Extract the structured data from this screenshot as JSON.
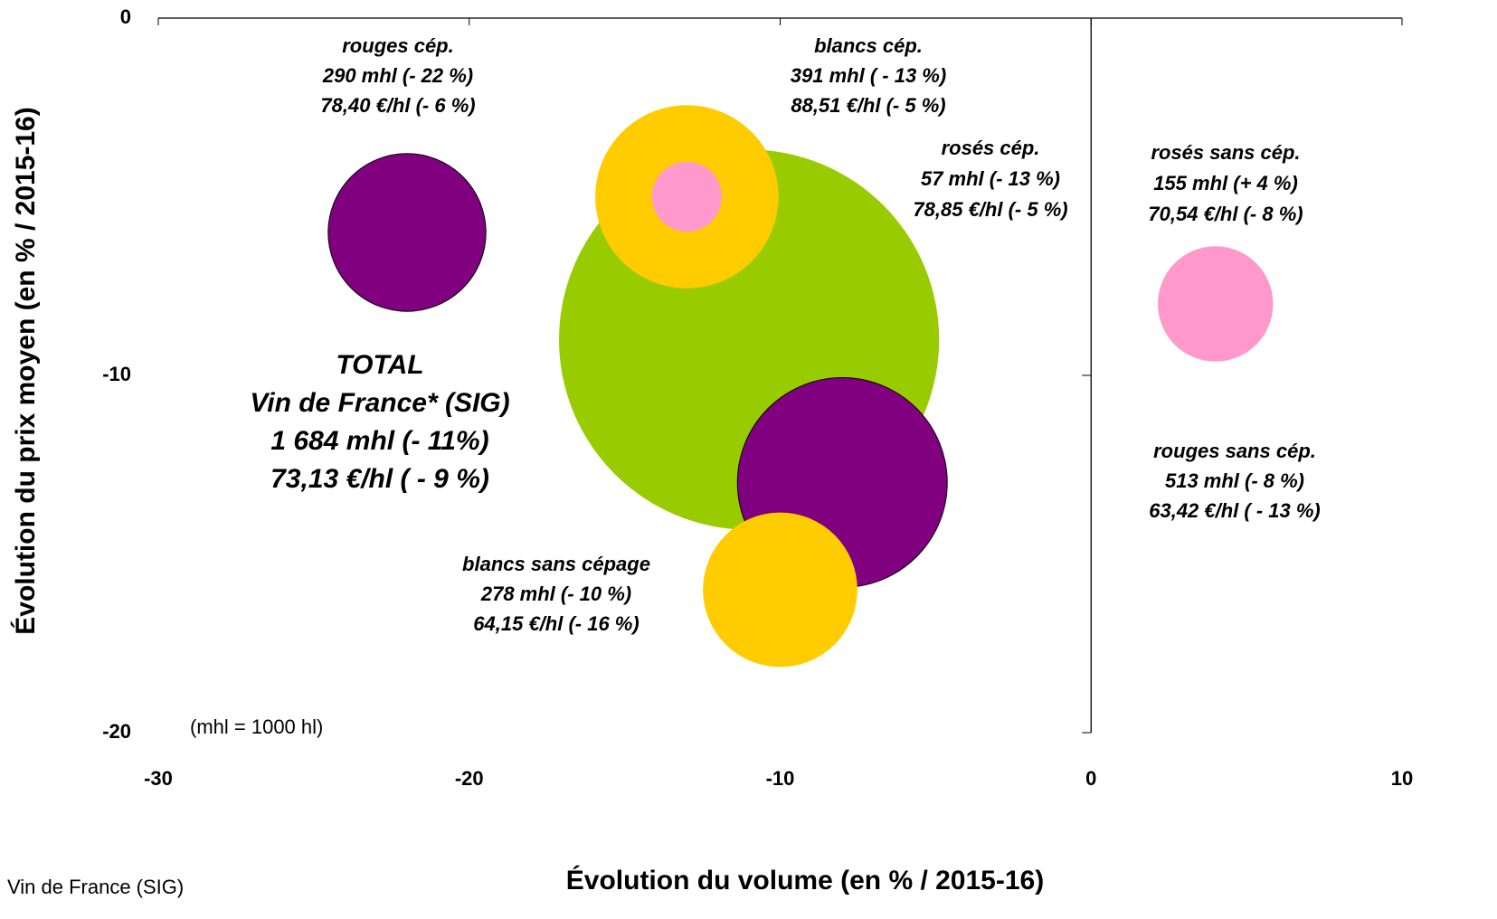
{
  "chart_data": {
    "type": "bubble",
    "x_label": "Évolution du volume (en % / 2015-16)",
    "y_label": "Évolution du prix moyen (en % / 2015-16)",
    "annotation": "(mhl = 1000 hl)",
    "source": "Vin de France (SIG)",
    "xlim": [
      -30,
      10
    ],
    "xticks": [
      -30,
      -20,
      -10,
      0,
      10
    ],
    "ylim": [
      -20,
      0
    ],
    "yticks": [
      0,
      -10,
      -20
    ],
    "series": [
      {
        "color": "#99cc00",
        "x": -11,
        "y": -9,
        "size": 1684,
        "label": [
          "TOTAL",
          "Vin de France* (SIG)",
          "1 684 mhl (- 11%)",
          "73,13 €/hl ( - 9 %)"
        ]
      },
      {
        "color": "#800080",
        "x": -8,
        "y": -13,
        "size": 513,
        "label": [
          "rouges sans cép.",
          "513 mhl (- 8 %)",
          "63,42 €/hl ( - 13 %)"
        ]
      },
      {
        "color": "#ffcc00",
        "x": -10,
        "y": -16,
        "size": 278,
        "label": [
          "blancs sans cépage",
          "278 mhl (- 10 %)",
          "64,15 €/hl (- 16 %)"
        ]
      },
      {
        "color": "#ffcc00",
        "x": -13,
        "y": -5,
        "size": 391,
        "label": [
          "blancs cép.",
          "391 mhl ( - 13  %)",
          "88,51 €/hl (- 5 %)"
        ]
      },
      {
        "color": "#ff99cc",
        "x": -13,
        "y": -5,
        "size": 57,
        "label": [
          "rosés cép.",
          "57 mhl (- 13 %)",
          "78,85 €/hl (- 5 %)"
        ]
      },
      {
        "color": "#800080",
        "x": -22,
        "y": -6,
        "size": 290,
        "label": [
          "rouges cép.",
          "290 mhl (- 22 %)",
          "78,40 €/hl (- 6 %)"
        ]
      },
      {
        "color": "#ff99cc",
        "x": 4,
        "y": -8,
        "size": 155,
        "label": [
          "rosés sans cép.",
          "155 mhl (+ 4 %)",
          "70,54 €/hl (- 8 %)"
        ]
      }
    ]
  }
}
